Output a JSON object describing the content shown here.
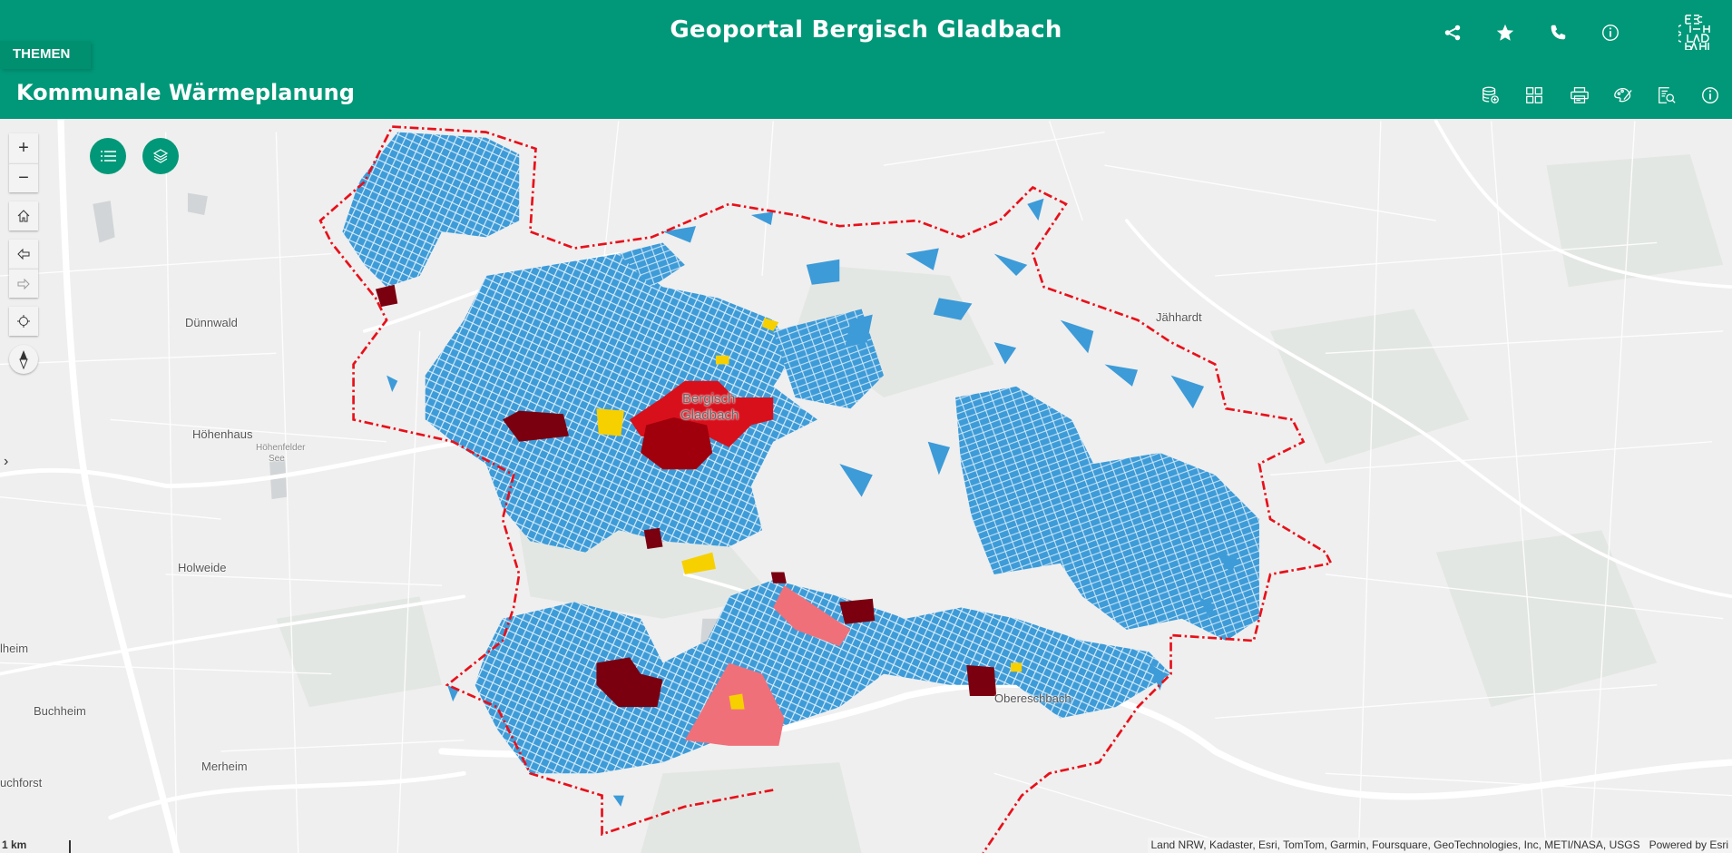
{
  "header": {
    "app_title": "Geoportal Bergisch Gladbach",
    "themen_label": "THEMEN",
    "subtitle": "Kommunale Wärmeplanung",
    "top_icons": [
      "share-icon",
      "star-icon",
      "phone-icon",
      "info-icon"
    ],
    "logo_text": "BERGISCH GLADBACH",
    "tool_icons": [
      "add-data-icon",
      "basemap-gallery-icon",
      "print-icon",
      "style-icon",
      "query-icon",
      "info-icon"
    ]
  },
  "map": {
    "controls": [
      "zoom-in",
      "zoom-out",
      "home",
      "previous-extent",
      "next-extent",
      "locate",
      "compass"
    ],
    "widget_buttons": [
      "legend-list-icon",
      "layers-icon"
    ],
    "place_labels": {
      "duennwald": "Dünnwald",
      "hoehenhaus": "Höhenhaus",
      "hoehenfelder_see_1": "Höhenfelder",
      "hoehenfelder_see_2": "See",
      "holweide": "Holweide",
      "muelheim": "lheim",
      "buchheim": "Buchheim",
      "merheim": "Merheim",
      "buchforst": "uchforst",
      "jaehhardt": "Jähhardt",
      "bergisch": "Bergisch",
      "gladbach": "Gladbach",
      "obereschbach": "Obereschbach"
    },
    "scale_label": "1 km",
    "attribution": "Land NRW, Kadaster, Esri, TomTom, Garmin, Foursquare, GeoTechnologies, Inc, METI/NASA, USGS",
    "powered_by": "Powered by Esri",
    "colors": {
      "header": "#009878",
      "boundary": "#e8101a",
      "blue": "#3d9bd8",
      "red": "#d8101c",
      "dark_red": "#a0000c",
      "maroon": "#7a0010",
      "pink": "#f0707a",
      "yellow": "#f7d000"
    }
  }
}
